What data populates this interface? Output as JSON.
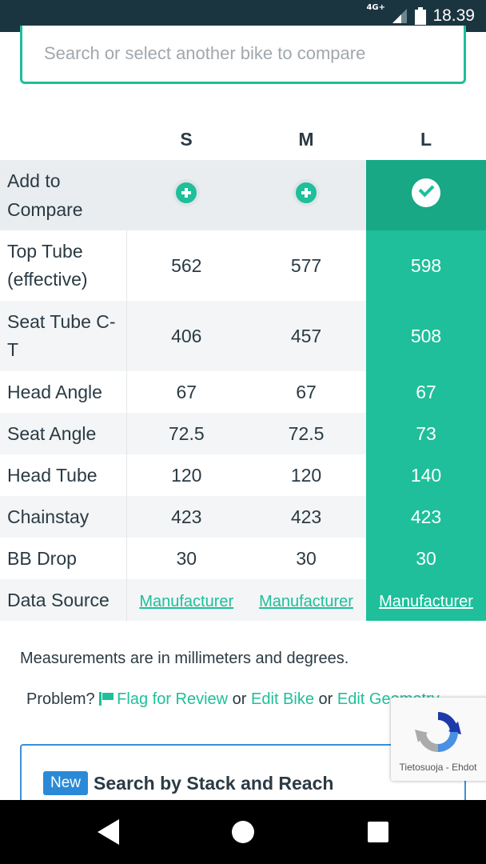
{
  "status_bar": {
    "network": "4G+",
    "time": "18.39"
  },
  "search": {
    "placeholder": "Search or select another bike to compare"
  },
  "table": {
    "sizes": [
      "S",
      "M",
      "L"
    ],
    "selected_size": "L",
    "add_label_line1": "Add to",
    "add_label_line2": "Compare",
    "rows": [
      {
        "label": "Top Tube (effective)",
        "values": [
          "562",
          "577",
          "598"
        ]
      },
      {
        "label": "Seat Tube C-T",
        "values": [
          "406",
          "457",
          "508"
        ]
      },
      {
        "label": "Head Angle",
        "values": [
          "67",
          "67",
          "67"
        ]
      },
      {
        "label": "Seat Angle",
        "values": [
          "72.5",
          "72.5",
          "73"
        ]
      },
      {
        "label": "Head Tube",
        "values": [
          "120",
          "120",
          "140"
        ]
      },
      {
        "label": "Chainstay",
        "values": [
          "423",
          "423",
          "423"
        ]
      },
      {
        "label": "BB Drop",
        "values": [
          "30",
          "30",
          "30"
        ]
      }
    ],
    "data_source": {
      "label": "Data Source",
      "values": [
        "Manufacturer",
        "Manufacturer",
        "Manufacturer"
      ]
    }
  },
  "notes": {
    "measurements": "Measurements are in millimeters and degrees.",
    "problem_prefix": "Problem?",
    "flag_link": "Flag for Review",
    "or1": "or",
    "edit_bike": "Edit Bike",
    "or2": "or",
    "edit_geometry": "Edit Geometry"
  },
  "card": {
    "badge": "New",
    "title": "Search by Stack and Reach"
  },
  "recaptcha": {
    "links": "Tietosuoja - Ehdot"
  },
  "colors": {
    "accent": "#1ebf9a",
    "selected_header": "#18a886",
    "card_border": "#3d8fd6",
    "badge": "#2b8ad7",
    "status_bar": "#1b3540"
  }
}
